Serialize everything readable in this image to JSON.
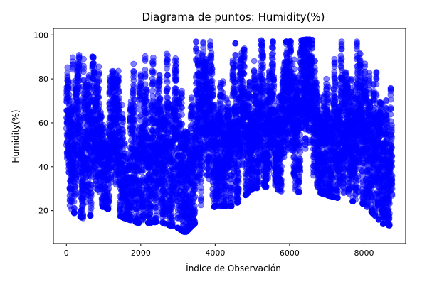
{
  "chart_data": {
    "type": "scatter",
    "title": "Diagrama de puntos: Humidity(%)",
    "xlabel": "Índice de Observación",
    "ylabel": "Humidity(%)",
    "xlim": [
      -350,
      9120
    ],
    "ylim": [
      5,
      103
    ],
    "xticks": [
      0,
      2000,
      4000,
      6000,
      8000
    ],
    "xtick_labels": [
      "0",
      "2000",
      "4000",
      "6000",
      "8000"
    ],
    "yticks": [
      20,
      40,
      60,
      80,
      100
    ],
    "ytick_labels": [
      "20",
      "40",
      "60",
      "80",
      "100"
    ],
    "grid": false,
    "marker_color": "#0000ff",
    "marker_opacity": 0.5,
    "n_points": 8760,
    "x_range": [
      0,
      8759
    ],
    "y_range": [
      10,
      98
    ],
    "envelope": {
      "x": [
        0,
        500,
        1000,
        1500,
        2000,
        2500,
        3000,
        3200,
        3500,
        4000,
        4500,
        5000,
        5500,
        6000,
        6500,
        7000,
        7500,
        8000,
        8500,
        8759
      ],
      "y_min": [
        21,
        16,
        22,
        17,
        14,
        15,
        12,
        10,
        15,
        22,
        22,
        30,
        31,
        27,
        30,
        27,
        25,
        23,
        14,
        13
      ],
      "y_max": [
        92,
        96,
        92,
        91,
        97,
        97,
        97,
        97,
        97,
        97,
        96,
        98,
        97,
        97,
        98,
        97,
        97,
        97,
        96,
        72
      ],
      "y_center": [
        50,
        50,
        48,
        40,
        44,
        50,
        48,
        42,
        52,
        56,
        58,
        62,
        64,
        62,
        64,
        60,
        58,
        58,
        54,
        40
      ]
    }
  }
}
